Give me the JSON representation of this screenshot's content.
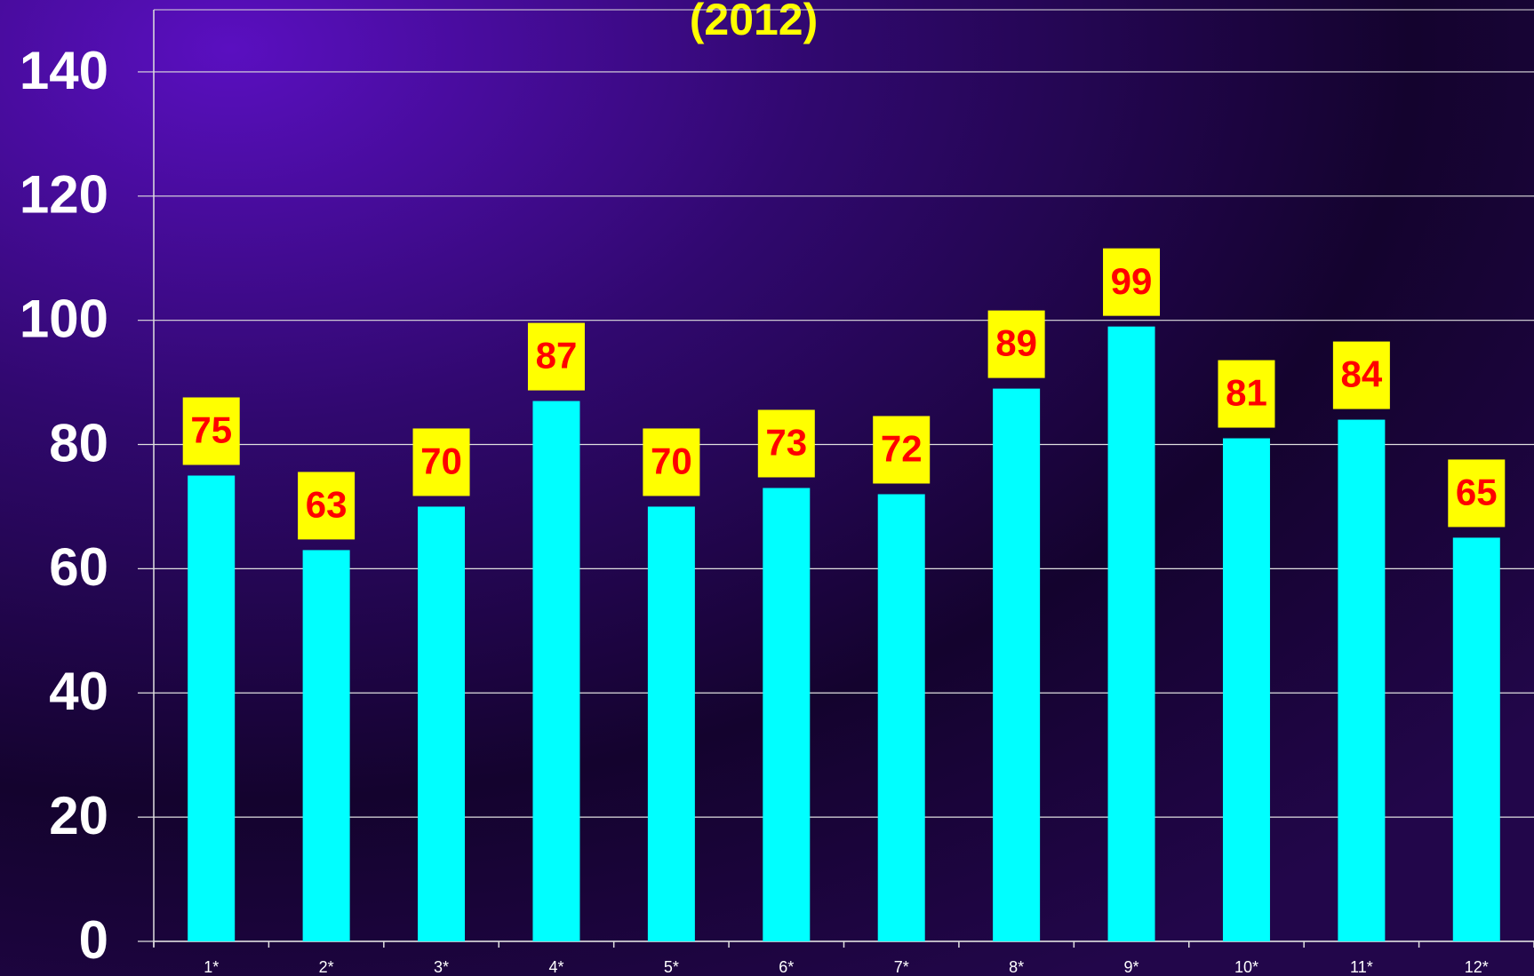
{
  "chart_data": {
    "type": "bar",
    "title": "(2012)",
    "categories": [
      "1*",
      "2*",
      "3*",
      "4*",
      "5*",
      "6*",
      "7*",
      "8*",
      "9*",
      "10*",
      "11*",
      "12*"
    ],
    "values": [
      75,
      63,
      70,
      87,
      70,
      73,
      72,
      89,
      99,
      81,
      84,
      65
    ],
    "color": "#00ffff",
    "label_box_color": "#ffff00",
    "label_color": "#ff0000",
    "title_color": "#ffff00",
    "ylim": [
      0,
      150
    ],
    "yticks": [
      0,
      20,
      40,
      60,
      80,
      100,
      120,
      140
    ],
    "grid": true
  }
}
